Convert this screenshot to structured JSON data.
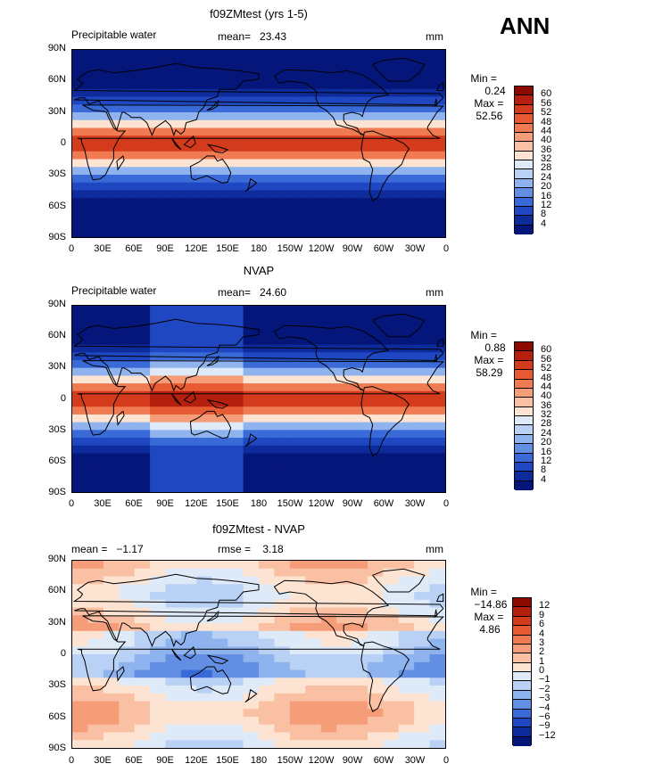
{
  "figure": {
    "season": "ANN",
    "longitude_ticks": [
      "0",
      "30E",
      "60E",
      "90E",
      "120E",
      "150E",
      "180",
      "150W",
      "120W",
      "90W",
      "60W",
      "30W",
      "0"
    ],
    "latitude_ticks": [
      "90N",
      "60N",
      "30N",
      "0",
      "30S",
      "60S",
      "90S"
    ]
  },
  "panels": [
    {
      "title": "f09ZMtest (yrs 1-5)",
      "left_label": "Precipitable water",
      "center_label": "mean=   23.43",
      "units": "mm",
      "min_label": "Min =",
      "min_value": "0.24",
      "max_label": "Max =",
      "max_value": "52.56",
      "legend_levels": [
        "60",
        "56",
        "52",
        "48",
        "44",
        "40",
        "36",
        "32",
        "28",
        "24",
        "20",
        "16",
        "12",
        "8",
        "4"
      ]
    },
    {
      "title": "NVAP",
      "left_label": "Precipitable water",
      "center_label": "mean=   24.60",
      "units": "mm",
      "min_label": "Min =",
      "min_value": "0.88",
      "max_label": "Max =",
      "max_value": "58.29",
      "legend_levels": [
        "60",
        "56",
        "52",
        "48",
        "44",
        "40",
        "36",
        "32",
        "28",
        "24",
        "20",
        "16",
        "12",
        "8",
        "4"
      ]
    },
    {
      "title": "f09ZMtest - NVAP",
      "left_label": "mean =   −1.17",
      "center_label": "rmse =    3.18",
      "units": "mm",
      "min_label": "Min =",
      "min_value": "−14.86",
      "max_label": "Max =",
      "max_value": "4.86",
      "legend_levels": [
        "12",
        "9",
        "6",
        "4",
        "3",
        "2",
        "1",
        "0",
        "−1",
        "−2",
        "−3",
        "−4",
        "−6",
        "−9",
        "−12"
      ]
    }
  ],
  "colors": {
    "abs_scale_top_to_bottom": [
      "#8c0a00",
      "#b51f0d",
      "#d43a1c",
      "#e85a33",
      "#f07b52",
      "#f59c78",
      "#fac0a3",
      "#fde3d2",
      "#dfeaf8",
      "#b9d1f5",
      "#8fb3ee",
      "#628fe4",
      "#3a69d8",
      "#1f47c2",
      "#0e2b9c",
      "#05167a"
    ],
    "diff_scale_top_to_bottom": [
      "#8c0a00",
      "#b51f0d",
      "#d43a1c",
      "#e85a33",
      "#f07b52",
      "#f59c78",
      "#fac0a3",
      "#fde3d2",
      "#dfeaf8",
      "#b9d1f5",
      "#8fb3ee",
      "#628fe4",
      "#3a69d8",
      "#1f47c2",
      "#0e2b9c",
      "#05167a"
    ]
  }
}
